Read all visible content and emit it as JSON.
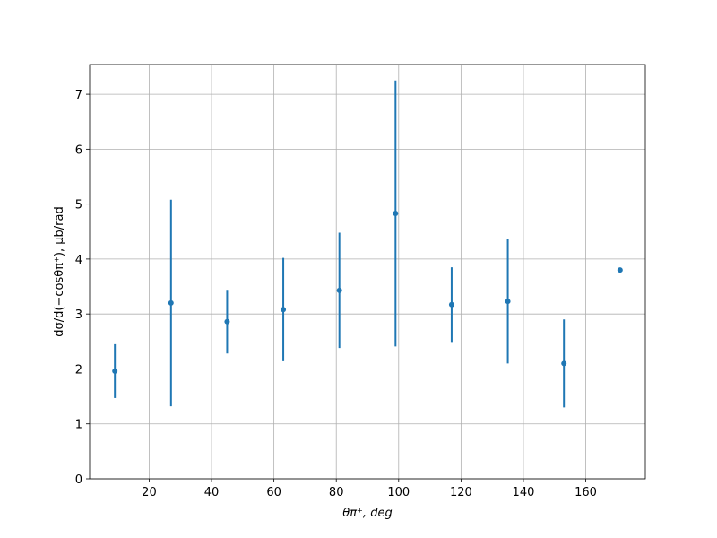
{
  "chart_data": {
    "type": "scatter",
    "xlabel": "θπ⁺, deg",
    "ylabel": "dσ/d(−cosθπ⁺), μb/rad",
    "x": [
      9,
      27,
      45,
      63,
      81,
      99,
      117,
      135,
      153,
      171
    ],
    "values": [
      1.96,
      3.2,
      2.86,
      3.08,
      3.43,
      4.83,
      3.17,
      3.23,
      2.1,
      3.8
    ],
    "errors": [
      0.49,
      1.88,
      0.58,
      0.94,
      1.05,
      2.42,
      0.68,
      1.13,
      0.8,
      0
    ],
    "color": "#1f77b4",
    "xlim": [
      0.9,
      179.1
    ],
    "xticks": [
      20,
      40,
      60,
      80,
      100,
      120,
      140,
      160
    ],
    "ylim": [
      0,
      7.54
    ],
    "yticks": [
      0,
      1,
      2,
      3,
      4,
      5,
      6,
      7
    ],
    "grid": true
  }
}
